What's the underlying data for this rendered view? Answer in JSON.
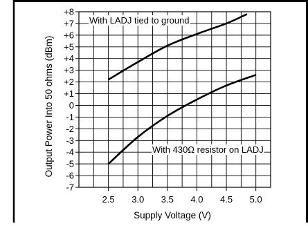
{
  "chart_data": {
    "type": "line",
    "xlabel": "Supply Voltage (V)",
    "ylabel": "Output Power Into 50 ohms (dBm)",
    "xlim": [
      2.0,
      5.25
    ],
    "ylim": [
      -7,
      8
    ],
    "x_ticks": [
      2.5,
      3.0,
      3.5,
      4.0,
      4.5,
      5.0
    ],
    "x_tick_labels": [
      "2.5",
      "3.0",
      "3.5",
      "4.0",
      "4.5",
      "5.0"
    ],
    "y_ticks": [
      8,
      7,
      6,
      5,
      4,
      3,
      2,
      1,
      0,
      -1,
      -2,
      -3,
      -4,
      -5,
      -6,
      -7
    ],
    "y_tick_labels": [
      "+8",
      "+7",
      "+6",
      "+5",
      "+4",
      "+3",
      "+2",
      "+1",
      "0",
      "-1",
      "-2",
      "-3",
      "-4",
      "-5",
      "-6",
      "-7"
    ],
    "grid": true,
    "series": [
      {
        "name": "With LADJ tied to ground",
        "x": [
          2.5,
          3.0,
          3.5,
          4.0,
          4.5,
          4.85
        ],
        "y": [
          2.2,
          3.7,
          5.1,
          6.1,
          7.0,
          7.8
        ]
      },
      {
        "name": "With 430Ω resistor on LADJ",
        "x": [
          2.5,
          3.0,
          3.5,
          4.0,
          4.5,
          5.0
        ],
        "y": [
          -5.0,
          -2.7,
          -0.9,
          0.5,
          1.7,
          2.6
        ]
      }
    ],
    "colors": {
      "line": "#000000",
      "grid": "#000000",
      "background": "#ffffff"
    }
  }
}
